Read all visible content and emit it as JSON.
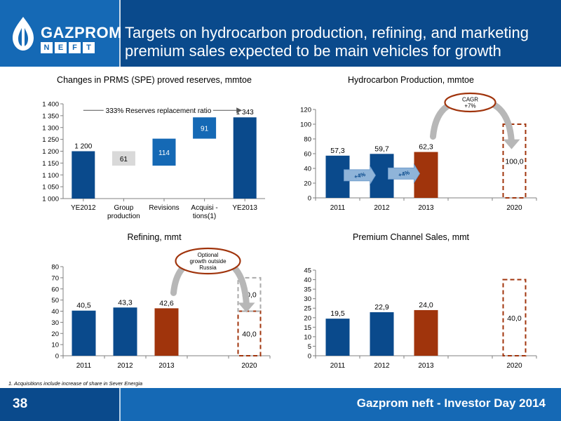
{
  "header": {
    "title_line1": "Targets on hydrocarbon production, refining, and marketing",
    "title_line2": "premium sales expected to be main vehicles for growth",
    "logo_word": "GAZPROM",
    "logo_sub_letters": [
      "N",
      "E",
      "F",
      "T"
    ]
  },
  "footer": {
    "page_number": "38",
    "event": "Gazprom neft - Investor Day 2014",
    "footnote": "1. Acquisitions include increase of share in Sever Energia"
  },
  "colors": {
    "header_dark": "#0a4a8c",
    "header_light": "#1569b5",
    "bar_dark_blue": "#0a4a8c",
    "bar_mid_blue": "#1569b5",
    "bar_grey": "#d9d9d9",
    "bar_rust": "#a0340c",
    "target_dash": "#a0340c",
    "target_dash_grey": "#aaaaaa",
    "arrow_grey": "#b7b7b7",
    "arrow_blue": "#8fb4d9"
  },
  "chart_data": [
    {
      "type": "bar",
      "subtype": "waterfall",
      "title": "Changes in PRMS (SPE) proved reserves, mmtoe",
      "ylim": [
        1000,
        1400
      ],
      "yticks": [
        "1 000",
        "1 050",
        "1 100",
        "1 150",
        "1 200",
        "1 250",
        "1 300",
        "1 350",
        "1 400"
      ],
      "ytick_values": [
        1000,
        1050,
        1100,
        1150,
        1200,
        1250,
        1300,
        1350,
        1400
      ],
      "categories": [
        "YE2012",
        "Group production",
        "Revisions",
        "Acquisitions(1)",
        "YE2013"
      ],
      "category_labels": [
        [
          "YE2012"
        ],
        [
          "Group",
          "production"
        ],
        [
          "Revisions"
        ],
        [
          "Acquisi -",
          "tions(1)"
        ],
        [
          "YE2013"
        ]
      ],
      "bars": [
        {
          "category": "YE2012",
          "base": 1000,
          "top": 1200,
          "label": "1 200",
          "kind": "total"
        },
        {
          "category": "Group production",
          "base": 1139,
          "top": 1200,
          "label": "61",
          "kind": "decrease"
        },
        {
          "category": "Revisions",
          "base": 1139,
          "top": 1253,
          "label": "114",
          "kind": "increase"
        },
        {
          "category": "Acquisitions(1)",
          "base": 1253,
          "top": 1343,
          "label": "91",
          "kind": "increase"
        },
        {
          "category": "YE2013",
          "base": 1000,
          "top": 1343,
          "label": "1 343",
          "kind": "total"
        }
      ],
      "annotation": "333% Reserves replacement ratio"
    },
    {
      "type": "bar",
      "title": "Hydrocarbon Production, mmtoe",
      "ylim": [
        0,
        120
      ],
      "yticks": [
        "0",
        "20",
        "40",
        "60",
        "80",
        "100",
        "120"
      ],
      "ytick_values": [
        0,
        20,
        40,
        60,
        80,
        100,
        120
      ],
      "categories": [
        "2011",
        "2012",
        "2013",
        "2020"
      ],
      "values": [
        57.3,
        59.7,
        62.3,
        100.0
      ],
      "labels": [
        "57,3",
        "59,7",
        "62,3",
        "100,0"
      ],
      "kinds": [
        "actual",
        "actual",
        "latest",
        "target"
      ],
      "growth_arrows": [
        "+4%",
        "+4%"
      ],
      "callout": [
        "CAGR",
        "+7%"
      ]
    },
    {
      "type": "bar",
      "title": "Refining, mmt",
      "ylim": [
        0,
        80
      ],
      "yticks": [
        "0",
        "10",
        "20",
        "30",
        "40",
        "50",
        "60",
        "70",
        "80"
      ],
      "ytick_values": [
        0,
        10,
        20,
        30,
        40,
        50,
        60,
        70,
        80
      ],
      "categories": [
        "2011",
        "2012",
        "2013",
        "2020"
      ],
      "values": [
        40.5,
        43.3,
        42.6,
        40.0
      ],
      "labels": [
        "40,5",
        "43,3",
        "42,6",
        "40,0"
      ],
      "kinds": [
        "actual",
        "actual",
        "latest",
        "target"
      ],
      "stacked_target": {
        "value": 30.0,
        "label": "30,0"
      },
      "callout": [
        "Optional",
        "growth outside",
        "Russia"
      ]
    },
    {
      "type": "bar",
      "title": "Premium Channel Sales, mmt",
      "ylim": [
        0,
        45
      ],
      "yticks": [
        "0",
        "5",
        "10",
        "15",
        "20",
        "25",
        "30",
        "35",
        "40",
        "45"
      ],
      "ytick_values": [
        0,
        5,
        10,
        15,
        20,
        25,
        30,
        35,
        40,
        45
      ],
      "categories": [
        "2011",
        "2012",
        "2013",
        "2020"
      ],
      "values": [
        19.5,
        22.9,
        24.0,
        40.0
      ],
      "labels": [
        "19,5",
        "22,9",
        "24,0",
        "40,0"
      ],
      "kinds": [
        "actual",
        "actual",
        "latest",
        "target"
      ]
    }
  ]
}
